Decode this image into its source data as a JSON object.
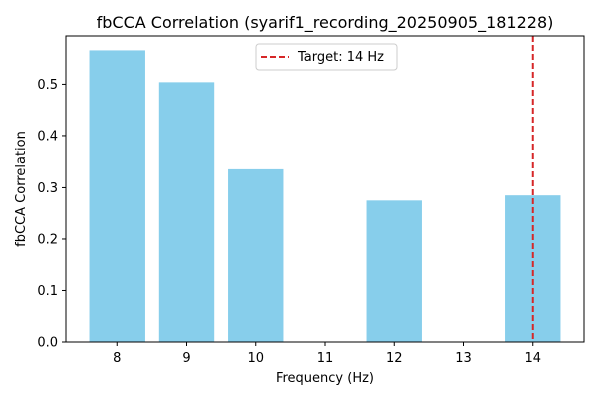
{
  "chart_data": {
    "type": "bar",
    "title": "fbCCA Correlation (syarif1_recording_20250905_181228)",
    "xlabel": "Frequency (Hz)",
    "ylabel": "fbCCA Correlation",
    "x": [
      8,
      9,
      10,
      11,
      12,
      13,
      14
    ],
    "values": [
      0.566,
      0.504,
      0.336,
      null,
      0.275,
      null,
      0.285
    ],
    "xlim": [
      7.26,
      14.74
    ],
    "ylim": [
      0,
      0.594
    ],
    "xticks": [
      "8",
      "9",
      "10",
      "11",
      "12",
      "13",
      "14"
    ],
    "yticks": [
      "0.0",
      "0.1",
      "0.2",
      "0.3",
      "0.4",
      "0.5"
    ],
    "bar_color": "#87ceeb",
    "grid": false,
    "target": {
      "x": 14,
      "label": "Target: 14 Hz",
      "color": "#d62728",
      "style": "dashed"
    },
    "legend": {
      "position": "top-center",
      "entries": [
        "Target: 14 Hz"
      ]
    }
  }
}
